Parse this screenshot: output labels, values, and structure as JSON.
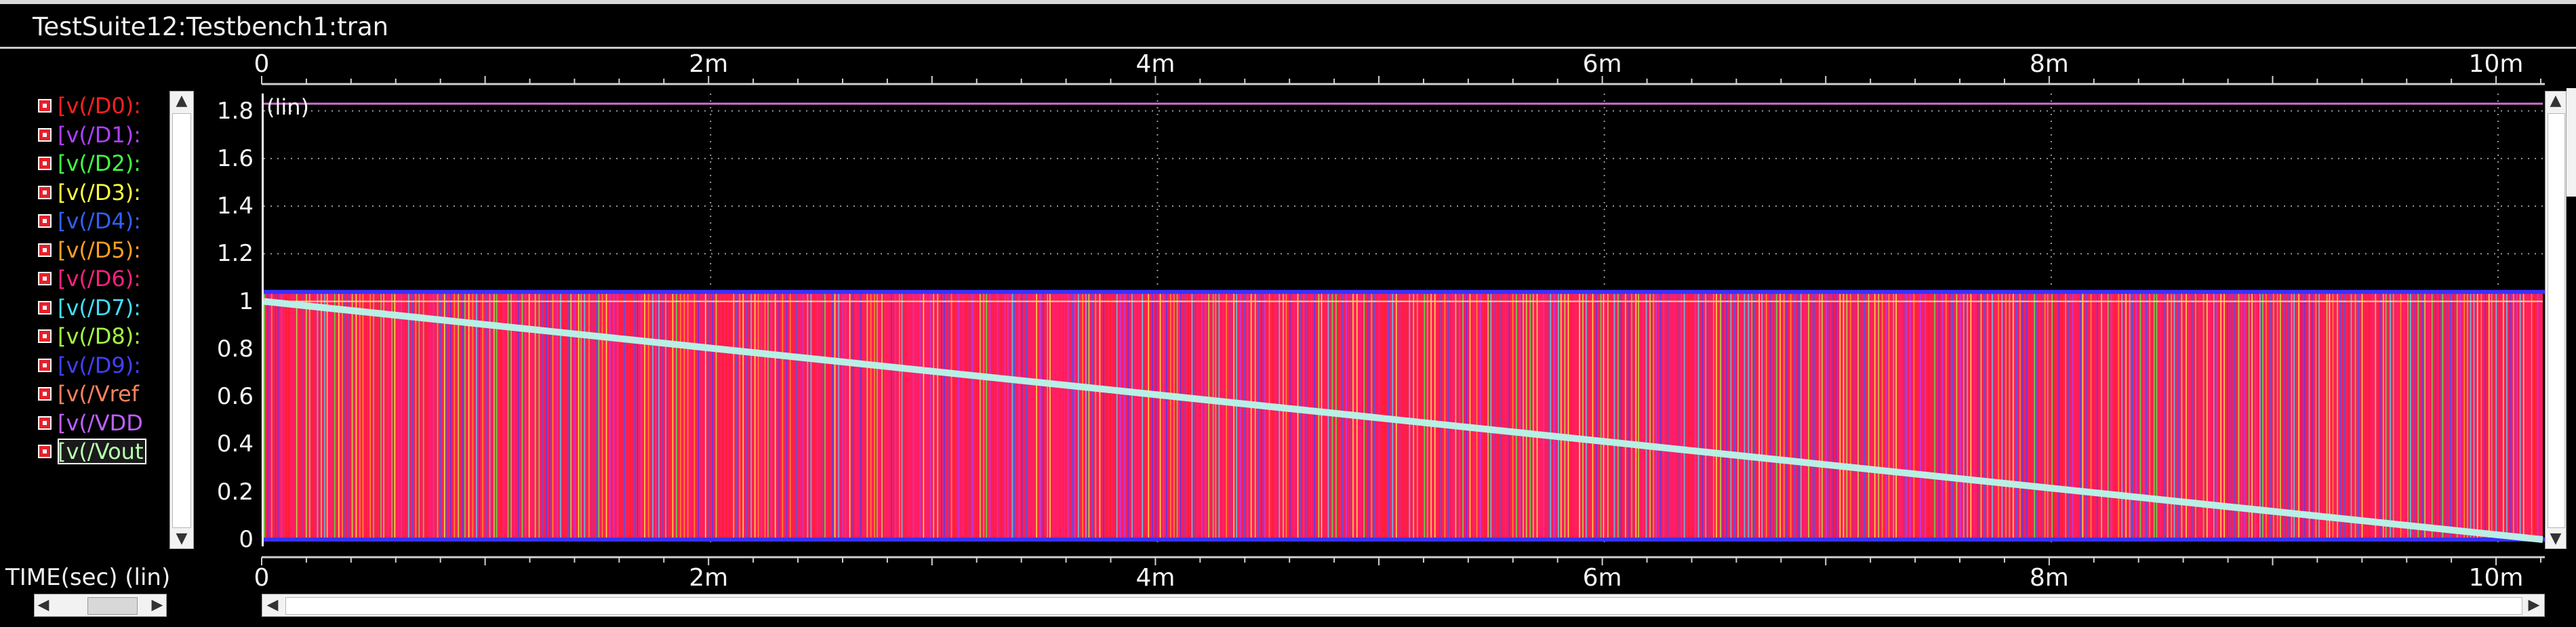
{
  "window": {
    "title": "TestSuite12:Testbench1:tran"
  },
  "colors": {
    "background": "#000000",
    "grid": "#9a9a9a",
    "axis_text": "#f5f5f5",
    "digital_fill": "#ff1e5a",
    "vout_trace": "#b8f0e6",
    "vdd_trace": "#d070d0"
  },
  "signals": [
    {
      "label": "[v(/D0):",
      "color": "#ff2020"
    },
    {
      "label": "[v(/D1):",
      "color": "#b040ff"
    },
    {
      "label": "[v(/D2):",
      "color": "#40ff40"
    },
    {
      "label": "[v(/D3):",
      "color": "#ffff40"
    },
    {
      "label": "[v(/D4):",
      "color": "#3060ff"
    },
    {
      "label": "[v(/D5):",
      "color": "#ffa020"
    },
    {
      "label": "[v(/D6):",
      "color": "#ff2080"
    },
    {
      "label": "[v(/D7):",
      "color": "#40e0ff"
    },
    {
      "label": "[v(/D8):",
      "color": "#a0ff40"
    },
    {
      "label": "[v(/D9):",
      "color": "#4040ff"
    },
    {
      "label": "[v(/Vref",
      "color": "#ff8060"
    },
    {
      "label": "[v(/VDD",
      "color": "#c060ff"
    },
    {
      "label": "[v(/Vout",
      "color": "#b8ffb0",
      "selected": true
    }
  ],
  "axes": {
    "y_scale_label": "(lin)",
    "x_label": "TIME(sec) (lin)"
  },
  "chart_data": {
    "type": "line",
    "xlim": [
      0,
      0.0102
    ],
    "ylim": [
      0,
      1.85
    ],
    "x_ticks": [
      {
        "value": 0,
        "label": "0"
      },
      {
        "value": 0.002,
        "label": "2m"
      },
      {
        "value": 0.004,
        "label": "4m"
      },
      {
        "value": 0.006,
        "label": "6m"
      },
      {
        "value": 0.008,
        "label": "8m"
      },
      {
        "value": 0.01,
        "label": "10m"
      }
    ],
    "y_ticks": [
      {
        "value": 0,
        "label": "0"
      },
      {
        "value": 0.2,
        "label": "0.2"
      },
      {
        "value": 0.4,
        "label": "0.4"
      },
      {
        "value": 0.6,
        "label": "0.6"
      },
      {
        "value": 0.8,
        "label": "0.8"
      },
      {
        "value": 1.0,
        "label": "1"
      },
      {
        "value": 1.2,
        "label": "1.2"
      },
      {
        "value": 1.4,
        "label": "1.4"
      },
      {
        "value": 1.6,
        "label": "1.6"
      },
      {
        "value": 1.8,
        "label": "1.8"
      }
    ],
    "grid": true,
    "series": [
      {
        "name": "v(/VDD",
        "x": [
          0,
          0.0102
        ],
        "y": [
          1.83,
          1.83
        ]
      },
      {
        "name": "v(/Vref",
        "x": [
          0,
          0.0102
        ],
        "y": [
          1.0,
          1.0
        ]
      },
      {
        "name": "v(/Vout",
        "x": [
          0,
          0.0102
        ],
        "y": [
          1.0,
          0.0
        ]
      }
    ],
    "digital_band": {
      "low": 0.0,
      "high": 1.04
    }
  }
}
